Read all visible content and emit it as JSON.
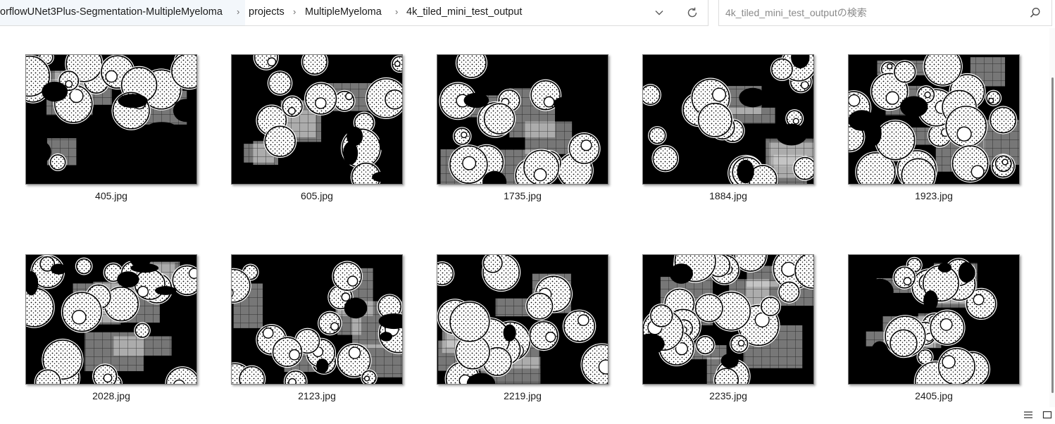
{
  "address_bar": {
    "crumbs": [
      "orflowUNet3Plus-Segmentation-MultipleMyeloma",
      "projects",
      "MultipleMyeloma",
      "4k_tiled_mini_test_output"
    ],
    "dropdown_icon": "chevron-down-icon",
    "refresh_icon": "refresh-icon"
  },
  "search": {
    "placeholder": "4k_tiled_mini_test_outputの検索",
    "value": "",
    "icon": "search-icon"
  },
  "files": [
    {
      "name": "405.jpg"
    },
    {
      "name": "605.jpg"
    },
    {
      "name": "1735.jpg"
    },
    {
      "name": "1884.jpg"
    },
    {
      "name": "1923.jpg"
    },
    {
      "name": "2028.jpg"
    },
    {
      "name": "2123.jpg"
    },
    {
      "name": "2219.jpg"
    },
    {
      "name": "2235.jpg"
    },
    {
      "name": "2405.jpg"
    }
  ],
  "status_bar": {
    "details_view_icon": "details-view-icon",
    "large_icons_view_icon": "large-icons-view-icon"
  },
  "colors": {
    "border": "#dcdcdc",
    "crumb_highlight": "#f3f7fb",
    "text": "#1b1b1b"
  }
}
